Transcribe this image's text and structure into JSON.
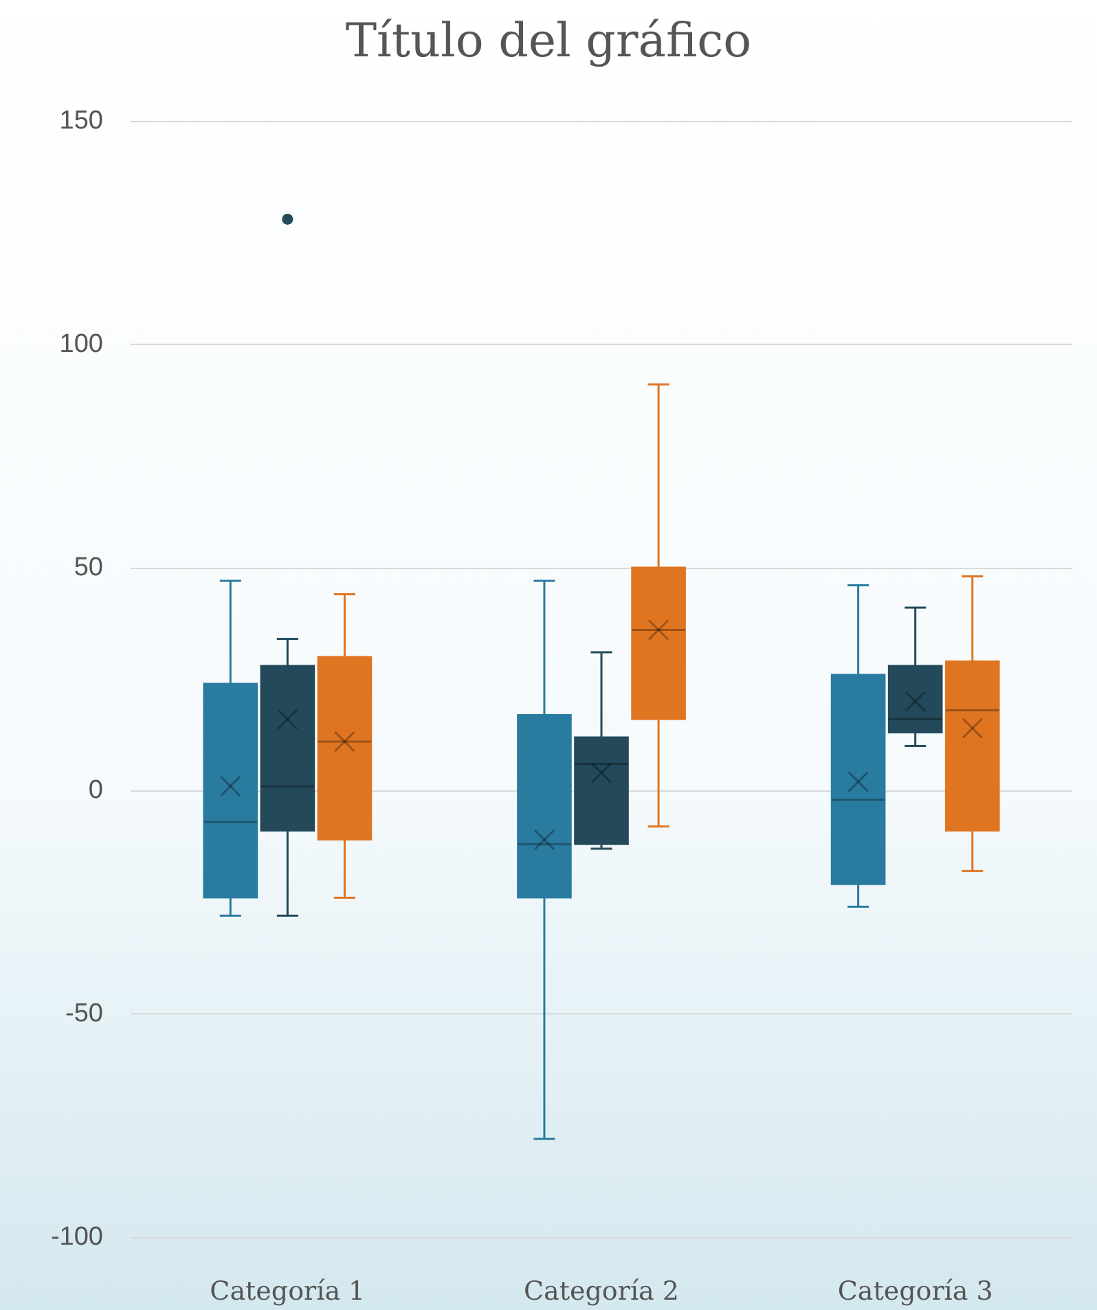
{
  "chart_data": {
    "type": "box",
    "title": "Título del gráfico",
    "categories": [
      "Categoría 1",
      "Categoría 2",
      "Categoría 3"
    ],
    "series": [
      {
        "color": "#2a7ba0",
        "boxes": [
          {
            "low": -28,
            "q1": -24,
            "median": -7,
            "q3": 24,
            "high": 47,
            "mean": 1
          },
          {
            "low": -78,
            "q1": -24,
            "median": -12,
            "q3": 17,
            "high": 47,
            "mean": -11
          },
          {
            "low": -26,
            "q1": -21,
            "median": -2,
            "q3": 26,
            "high": 46,
            "mean": 2
          }
        ]
      },
      {
        "color": "#23495a",
        "boxes": [
          {
            "low": -28,
            "q1": -9,
            "median": 1,
            "q3": 28,
            "high": 34,
            "mean": 16,
            "outliers": [
              128
            ]
          },
          {
            "low": -13,
            "q1": -12,
            "median": 6,
            "q3": 12,
            "high": 31,
            "mean": 4
          },
          {
            "low": 10,
            "q1": 13,
            "median": 16,
            "q3": 28,
            "high": 41,
            "mean": 20
          }
        ]
      },
      {
        "color": "#e07521",
        "boxes": [
          {
            "low": -24,
            "q1": -11,
            "median": 11,
            "q3": 30,
            "high": 44,
            "mean": 11
          },
          {
            "low": -8,
            "q1": 16,
            "median": 36,
            "q3": 50,
            "high": 91,
            "mean": 36
          },
          {
            "low": -18,
            "q1": -9,
            "median": 18,
            "q3": 29,
            "high": 48,
            "mean": 14
          }
        ]
      }
    ],
    "ylim": [
      -100,
      150
    ],
    "yticks": [
      -100,
      -50,
      0,
      50,
      100,
      150
    ],
    "grid": "y"
  }
}
